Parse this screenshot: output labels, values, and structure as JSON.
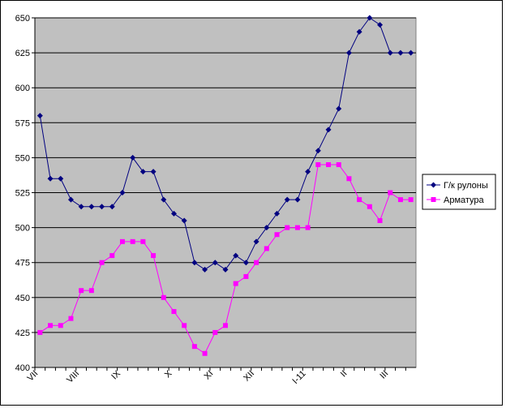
{
  "chart_data": {
    "type": "line",
    "categories": [
      "VII",
      null,
      null,
      null,
      "VIII",
      null,
      null,
      null,
      "IX",
      null,
      null,
      null,
      null,
      "X",
      null,
      null,
      null,
      "XI",
      null,
      null,
      null,
      "XII",
      null,
      null,
      null,
      null,
      "I-11",
      null,
      null,
      null,
      "II",
      null,
      null,
      null,
      "III",
      null,
      null
    ],
    "series": [
      {
        "name": "Г/к рулоны",
        "color": "#000080",
        "marker": "diamond",
        "values": [
          580,
          535,
          535,
          520,
          515,
          515,
          515,
          515,
          525,
          550,
          540,
          540,
          520,
          510,
          505,
          475,
          470,
          475,
          470,
          480,
          475,
          490,
          500,
          510,
          520,
          520,
          540,
          555,
          570,
          585,
          625,
          640,
          650,
          645,
          625,
          625,
          625
        ]
      },
      {
        "name": "Арматура",
        "color": "#ff00ff",
        "marker": "square",
        "values": [
          425,
          430,
          430,
          435,
          455,
          455,
          475,
          480,
          490,
          490,
          490,
          480,
          450,
          440,
          430,
          415,
          410,
          425,
          430,
          460,
          465,
          475,
          485,
          495,
          500,
          500,
          500,
          545,
          545,
          545,
          535,
          520,
          515,
          505,
          525,
          520,
          520
        ]
      }
    ],
    "ylim": [
      400,
      650
    ],
    "yticks": [
      400,
      425,
      450,
      475,
      500,
      525,
      550,
      575,
      600,
      625,
      650
    ],
    "grid": true,
    "legend": "right",
    "plot_background": "#c0c0c0"
  }
}
